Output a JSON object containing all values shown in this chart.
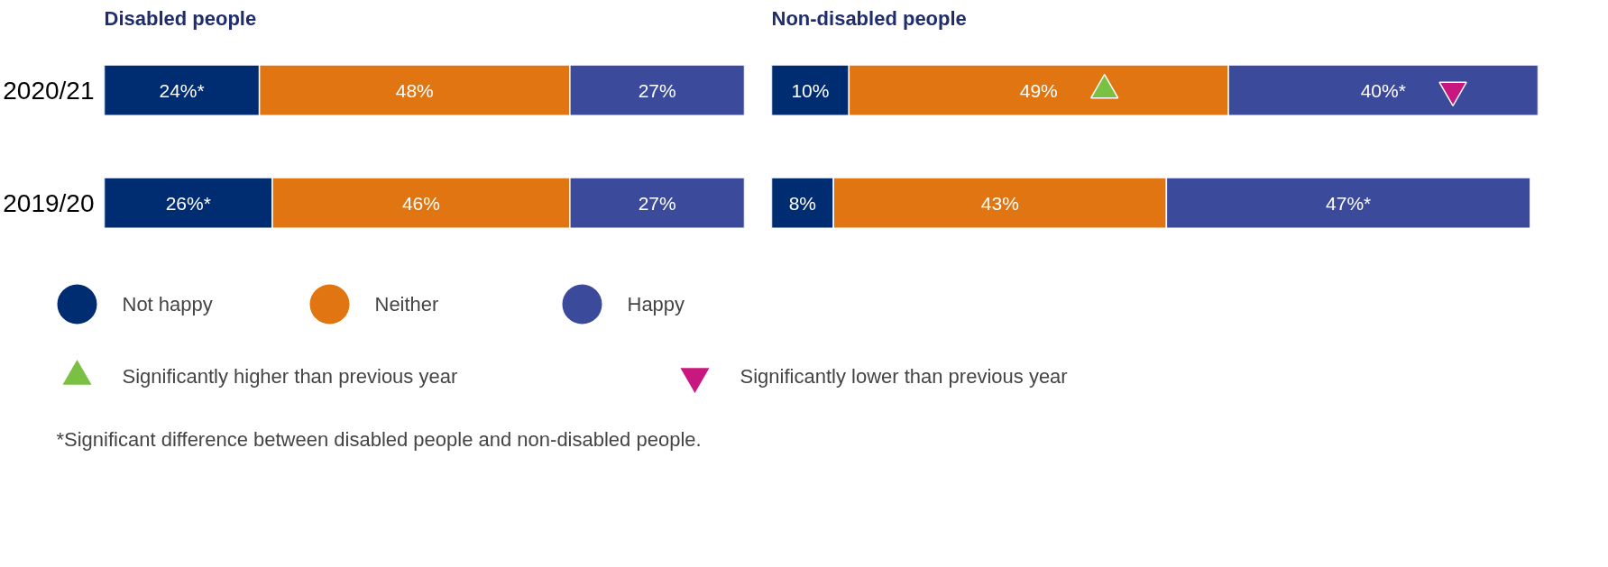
{
  "chart_data": [
    {
      "type": "bar",
      "orientation": "horizontal",
      "stacked": true,
      "title": "Disabled people",
      "categories": [
        "2020/21",
        "2019/20"
      ],
      "tick_labels": "y",
      "legend": "bottom",
      "grid": false,
      "series": [
        {
          "name": "Not happy",
          "color": "#002d72",
          "values": [
            24,
            26
          ],
          "value_labels": [
            "24%*",
            "26%*"
          ]
        },
        {
          "name": "Neither",
          "color": "#e07511",
          "values": [
            48,
            46
          ],
          "value_labels": [
            "48%",
            "46%"
          ]
        },
        {
          "name": "Happy",
          "color": "#3c4a9b",
          "values": [
            27,
            27
          ],
          "value_labels": [
            "27%",
            "27%"
          ]
        }
      ],
      "annotations": [
        "*Significant difference between disabled people and non-disabled people."
      ]
    },
    {
      "type": "bar",
      "orientation": "horizontal",
      "stacked": true,
      "title": "Non-disabled people",
      "categories": [
        "2020/21",
        "2019/20"
      ],
      "tick_labels": false,
      "legend": "bottom",
      "grid": false,
      "series": [
        {
          "color": "#002d72",
          "values": [
            10,
            8
          ],
          "value_labels": [
            "10%",
            "8%"
          ]
        },
        {
          "color": "#e07511",
          "values": [
            49,
            43
          ],
          "value_labels": [
            "49%",
            "43%"
          ]
        },
        {
          "color": "#3c4a9b",
          "values": [
            40,
            47
          ],
          "value_labels": [
            "40%*",
            "47%*"
          ]
        },
        {
          "type": "scatter",
          "name": "Significantly higher than previous year",
          "marker": "triangle",
          "color": "#7ac143",
          "x": [
            "2020/21"
          ],
          "values": [
            43
          ]
        },
        {
          "type": "scatter",
          "name": "Significantly lower than previous year",
          "color": "#c8177f",
          "x": [
            "2020/21"
          ],
          "values": [
            88
          ]
        }
      ]
    }
  ]
}
